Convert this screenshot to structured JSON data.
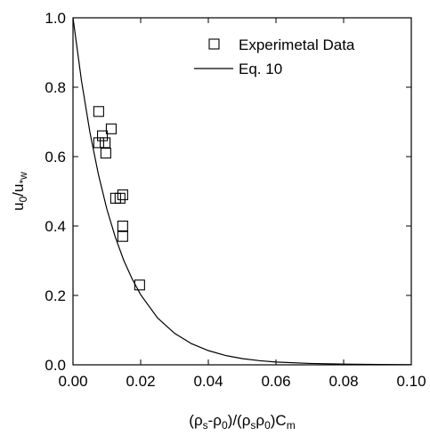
{
  "chart_data": {
    "type": "scatter",
    "x_label_parts": [
      "(ρ",
      "s",
      "-ρ",
      "0",
      ")/(ρ",
      "s",
      "ρ",
      "0",
      ")C",
      "m"
    ],
    "y_label_parts": [
      "u",
      "0",
      "/u",
      "*w"
    ],
    "xlim": [
      0,
      0.1
    ],
    "xticks": [
      {
        "value": 0,
        "label": "0.00"
      },
      0.02,
      0.04,
      0.06,
      0.08,
      {
        "value": 0.1,
        "label": "0.10"
      }
    ],
    "ylim": [
      0,
      1
    ],
    "yticks": [
      {
        "value": 0,
        "label": "0.0"
      },
      0.2,
      0.4,
      0.6,
      0.8,
      {
        "value": 1,
        "label": "1.0"
      }
    ],
    "legend": "upper right",
    "series": [
      {
        "name": "Experimetal Data",
        "type": "scatter",
        "marker": "square",
        "color": "#000000",
        "x": [
          0.0076,
          0.0076,
          0.0087,
          0.0095,
          0.0097,
          0.0113,
          0.0126,
          0.0139,
          0.0147,
          0.0147,
          0.0147,
          0.0197
        ],
        "values": [
          0.73,
          0.64,
          0.66,
          0.64,
          0.61,
          0.68,
          0.48,
          0.48,
          0.49,
          0.4,
          0.37,
          0.23
        ]
      },
      {
        "name": "Eq. 10",
        "type": "line",
        "color": "#000000",
        "x": [
          0,
          0.0025,
          0.005,
          0.0075,
          0.01,
          0.0125,
          0.015,
          0.0175,
          0.02,
          0.025,
          0.03,
          0.035,
          0.04,
          0.045,
          0.05,
          0.055,
          0.06,
          0.07,
          0.08,
          0.09,
          0.1
        ],
        "values": [
          1,
          0.819,
          0.67,
          0.549,
          0.449,
          0.368,
          0.301,
          0.247,
          0.202,
          0.135,
          0.091,
          0.061,
          0.041,
          0.027,
          0.018,
          0.012,
          0.008,
          0.004,
          0.002,
          0.001,
          0.0003
        ]
      }
    ]
  }
}
